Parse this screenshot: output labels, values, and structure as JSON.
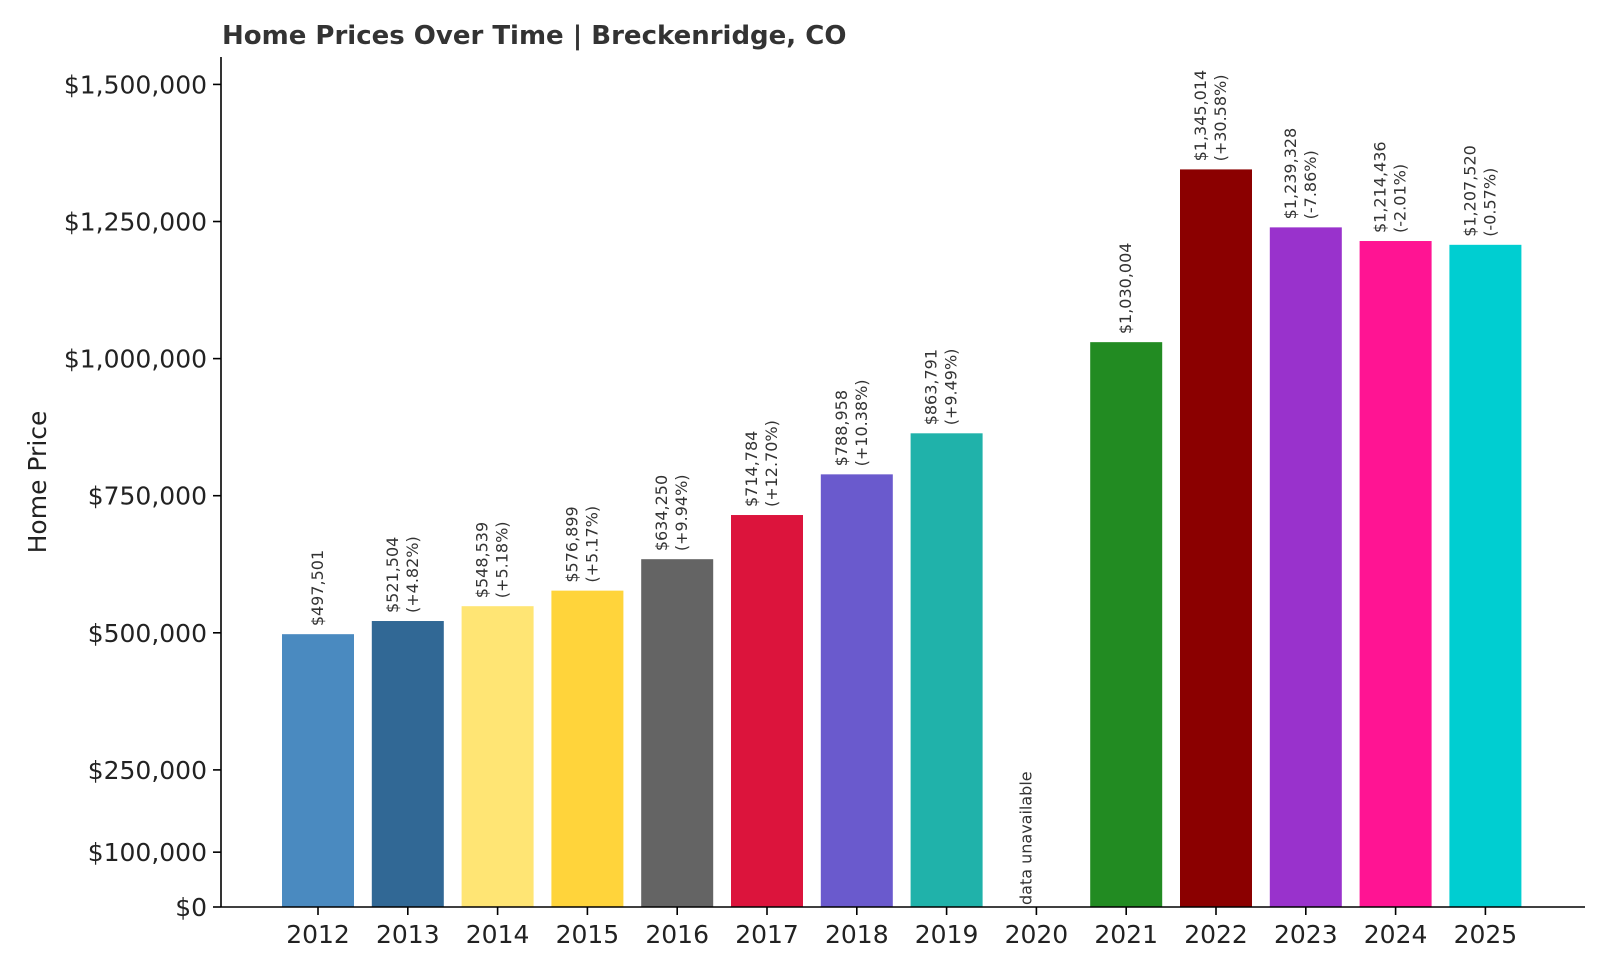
{
  "chart_data": {
    "type": "bar",
    "title": "Home Prices Over Time | Breckenridge, CO",
    "xlabel": "",
    "ylabel": "Home Price",
    "ylim": [
      0,
      1550000
    ],
    "yticks": [
      0,
      100000,
      250000,
      500000,
      750000,
      1000000,
      1250000,
      1500000
    ],
    "ytick_labels": [
      "$0",
      "$100,000",
      "$250,000",
      "$500,000",
      "$750,000",
      "$1,000,000",
      "$1,250,000",
      "$1,500,000"
    ],
    "grid": false,
    "legend": "none",
    "categories": [
      "2012",
      "2013",
      "2014",
      "2015",
      "2016",
      "2017",
      "2018",
      "2019",
      "2020",
      "2021",
      "2022",
      "2023",
      "2024",
      "2025"
    ],
    "values": [
      497501,
      521504,
      548539,
      576899,
      634250,
      714784,
      788958,
      863791,
      null,
      1030004,
      1345014,
      1239328,
      1214436,
      1207520
    ],
    "value_labels": [
      "$497,501",
      "$521,504",
      "$548,539",
      "$576,899",
      "$634,250",
      "$714,784",
      "$788,958",
      "$863,791",
      "data unavailable",
      "$1,030,004",
      "$1,345,014",
      "$1,239,328",
      "$1,214,436",
      "$1,207,520"
    ],
    "change_labels": [
      "",
      "(+4.82%)",
      "(+5.18%)",
      "(+5.17%)",
      "(+9.94%)",
      "(+12.70%)",
      "(+10.38%)",
      "(+9.49%)",
      "",
      "",
      "(+30.58%)",
      "(-7.86%)",
      "(-2.01%)",
      "(-0.57%)"
    ],
    "colors": [
      "#4a8ac0",
      "#316895",
      "#ffe574",
      "#ffd43b",
      "#646464",
      "#dc143c",
      "#6a5acd",
      "#20b2aa",
      "#ffffff",
      "#228b22",
      "#8b0000",
      "#9932cc",
      "#ff1493",
      "#00ced1"
    ]
  }
}
